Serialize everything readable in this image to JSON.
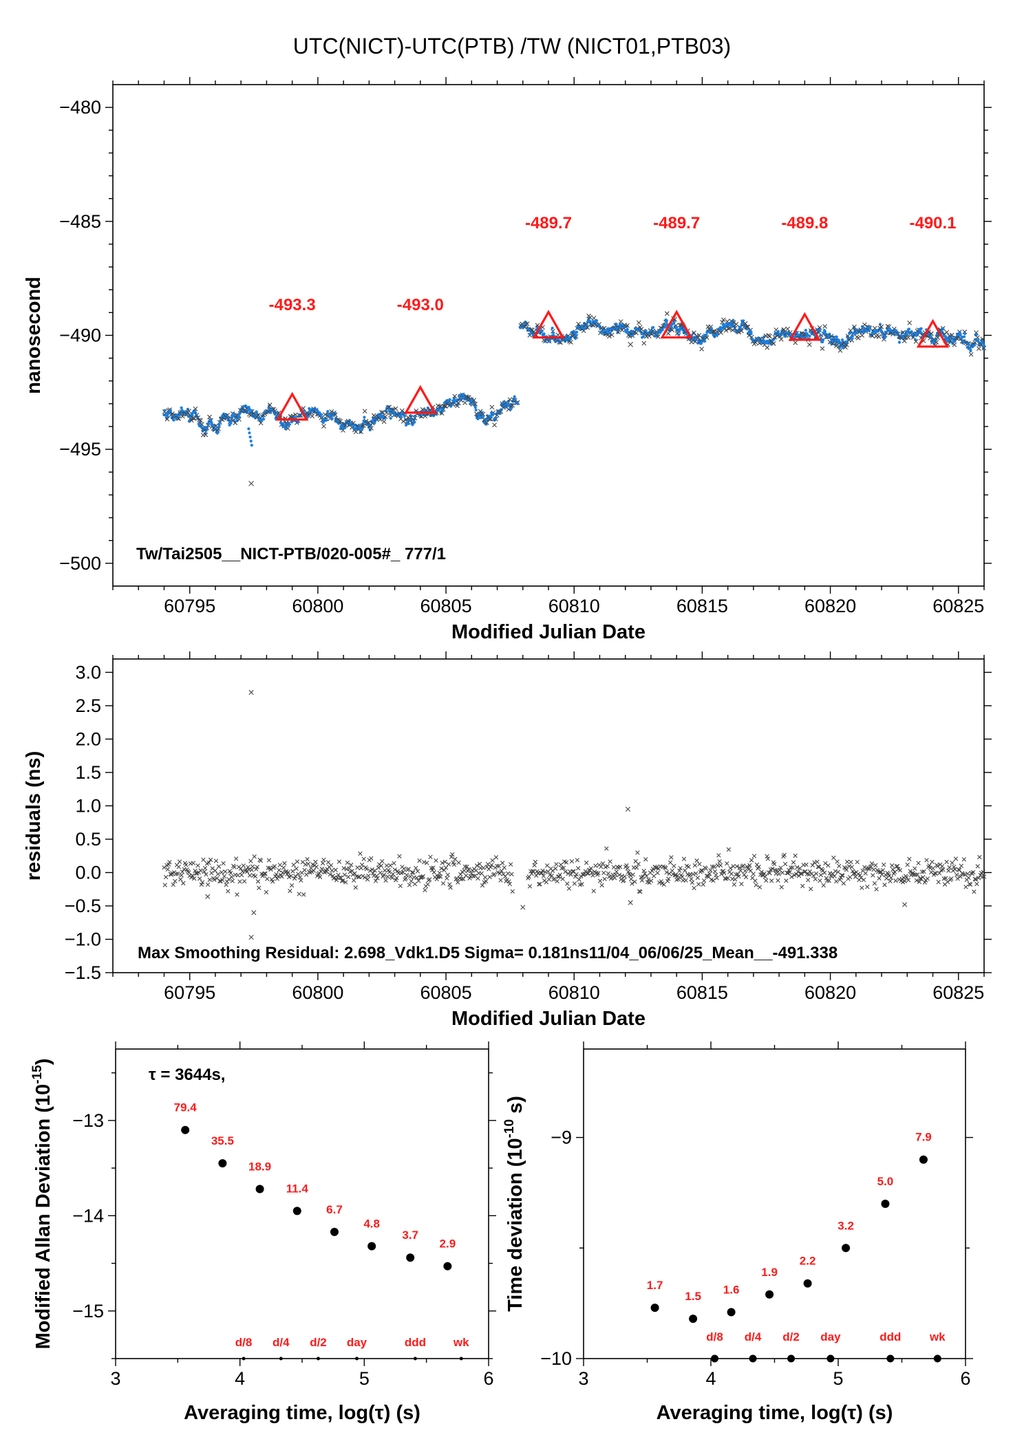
{
  "title": "UTC(NICT)-UTC(PTB)  /TW  (NICT01,PTB03)",
  "chart_data": [
    {
      "type": "scatter",
      "id": "timeseries",
      "xlabel": "Modified Julian Date",
      "ylabel": "nanosecond",
      "xlim": [
        60792.0,
        60826.0
      ],
      "ylim": [
        -501.0,
        -479.0
      ],
      "xticks": [
        60795,
        60800,
        60805,
        60810,
        60815,
        60820,
        60825
      ],
      "yticks": [
        -480,
        -485,
        -490,
        -495,
        -500
      ],
      "xtick_labels": [
        "60795",
        "60800",
        "60805",
        "60810",
        "60815",
        "60820",
        "60825"
      ],
      "ytick_labels": [
        "−480",
        "−485",
        "−490",
        "−495",
        "−500"
      ],
      "segments": [
        {
          "x_start": 60794.0,
          "x_end": 60807.8,
          "y_start": -493.7,
          "y_end": -493.3
        },
        {
          "x_start": 60807.9,
          "x_end": 60826.0,
          "y_start": -489.7,
          "y_end": -490.2
        }
      ],
      "outliers": [
        {
          "x": 60797.4,
          "y": -496.5
        },
        {
          "x": 60812.2,
          "y": -490.4
        }
      ],
      "markers": [
        {
          "x": 60799.0,
          "y": -493.3,
          "label": "-493.3"
        },
        {
          "x": 60804.0,
          "y": -493.0,
          "label": "-493.0"
        },
        {
          "x": 60809.0,
          "y": -489.7,
          "label": "-489.7"
        },
        {
          "x": 60814.0,
          "y": -489.7,
          "label": "-489.7"
        },
        {
          "x": 60819.0,
          "y": -489.8,
          "label": "-489.8"
        },
        {
          "x": 60824.0,
          "y": -490.1,
          "label": "-490.1"
        }
      ],
      "annotation": "Tw/Tai2505__NICT-PTB/020-005#_  777/1",
      "colors": {
        "points": "#1a7fe0",
        "crosses": "#444444",
        "markers": "#ff1a1a"
      }
    },
    {
      "type": "scatter",
      "id": "residuals",
      "xlabel": "Modified Julian Date",
      "ylabel": "residuals (ns)",
      "xlim": [
        60792.0,
        60826.0
      ],
      "ylim": [
        -1.5,
        3.2
      ],
      "xticks": [
        60795,
        60800,
        60805,
        60810,
        60815,
        60820,
        60825
      ],
      "yticks": [
        -1.5,
        -1.0,
        -0.5,
        0.0,
        0.5,
        1.0,
        1.5,
        2.0,
        2.5,
        3.0
      ],
      "xtick_labels": [
        "60795",
        "60800",
        "60805",
        "60810",
        "60815",
        "60820",
        "60825"
      ],
      "ytick_labels": [
        "−1.5",
        "−1.0",
        "−0.5",
        "0.0",
        "0.5",
        "1.0",
        "1.5",
        "2.0",
        "2.5",
        "3.0"
      ],
      "x_range": [
        60794.0,
        60826.0
      ],
      "gap": [
        60807.6,
        60808.2
      ],
      "sigma": 0.181,
      "outliers": [
        {
          "x": 60797.4,
          "y": 2.7
        },
        {
          "x": 60812.1,
          "y": 0.95
        },
        {
          "x": 60797.4,
          "y": -0.97
        },
        {
          "x": 60797.5,
          "y": -0.6
        },
        {
          "x": 60812.2,
          "y": -0.45
        },
        {
          "x": 60808.0,
          "y": -0.52
        },
        {
          "x": 60822.9,
          "y": -0.48
        },
        {
          "x": 60795.7,
          "y": -0.36
        }
      ],
      "annotation": "Max Smoothing Residual: 2.698_Vdk1.D5  Sigma= 0.181ns11/04_06/06/25_Mean__-491.338"
    },
    {
      "type": "scatter",
      "id": "mdev",
      "xlabel": "Averaging time, log(τ) (s)",
      "ylabel_main": "Modified Allan Deviation (10",
      "ylabel_sup": "-15",
      "ylabel_end": ")",
      "xlim": [
        3.0,
        6.0
      ],
      "ylim": [
        -15.5,
        -12.25
      ],
      "xticks": [
        3,
        4,
        5,
        6
      ],
      "yticks": [
        -15,
        -14,
        -13
      ],
      "xtick_labels": [
        "3",
        "4",
        "5",
        "6"
      ],
      "ytick_labels": [
        "−15",
        "−14",
        "−13"
      ],
      "tau_note": "τ = 3644s,",
      "points": [
        {
          "x": 3.56,
          "y": -13.1,
          "label": "79.4"
        },
        {
          "x": 3.86,
          "y": -13.45,
          "label": "35.5"
        },
        {
          "x": 4.16,
          "y": -13.72,
          "label": "18.9"
        },
        {
          "x": 4.46,
          "y": -13.95,
          "label": "11.4"
        },
        {
          "x": 4.76,
          "y": -14.17,
          "label": "6.7"
        },
        {
          "x": 5.06,
          "y": -14.32,
          "label": "4.8"
        },
        {
          "x": 5.37,
          "y": -14.44,
          "label": "3.7"
        },
        {
          "x": 5.67,
          "y": -14.53,
          "label": "2.9"
        }
      ],
      "period_marks": [
        {
          "x": 4.03,
          "label": "d/8"
        },
        {
          "x": 4.33,
          "label": "d/4"
        },
        {
          "x": 4.63,
          "label": "d/2"
        },
        {
          "x": 4.94,
          "label": "day"
        },
        {
          "x": 5.41,
          "label": "ddd"
        },
        {
          "x": 5.78,
          "label": "wk"
        }
      ]
    },
    {
      "type": "scatter",
      "id": "tdev",
      "xlabel": "Averaging time, log(τ) (s)",
      "ylabel_main": "Time deviation (10",
      "ylabel_sup": "-10",
      "ylabel_end": " s)",
      "xlim": [
        3.0,
        6.0
      ],
      "ylim": [
        -10.0,
        -8.6
      ],
      "xticks": [
        3,
        4,
        5,
        6
      ],
      "yticks": [
        -10,
        -9
      ],
      "xtick_labels": [
        "3",
        "4",
        "5",
        "6"
      ],
      "ytick_labels": [
        "−10",
        "−9"
      ],
      "points": [
        {
          "x": 3.56,
          "y": -9.77,
          "label": "1.7"
        },
        {
          "x": 3.86,
          "y": -9.82,
          "label": "1.5"
        },
        {
          "x": 4.16,
          "y": -9.79,
          "label": "1.6"
        },
        {
          "x": 4.46,
          "y": -9.71,
          "label": "1.9"
        },
        {
          "x": 4.76,
          "y": -9.66,
          "label": "2.2"
        },
        {
          "x": 5.06,
          "y": -9.5,
          "label": "3.2"
        },
        {
          "x": 5.37,
          "y": -9.3,
          "label": "5.0"
        },
        {
          "x": 5.67,
          "y": -9.1,
          "label": "7.9"
        }
      ],
      "period_marks": [
        {
          "x": 4.03,
          "label": "d/8"
        },
        {
          "x": 4.33,
          "label": "d/4"
        },
        {
          "x": 4.63,
          "label": "d/2"
        },
        {
          "x": 4.94,
          "label": "day"
        },
        {
          "x": 5.41,
          "label": "ddd"
        },
        {
          "x": 5.78,
          "label": "wk"
        }
      ]
    }
  ]
}
